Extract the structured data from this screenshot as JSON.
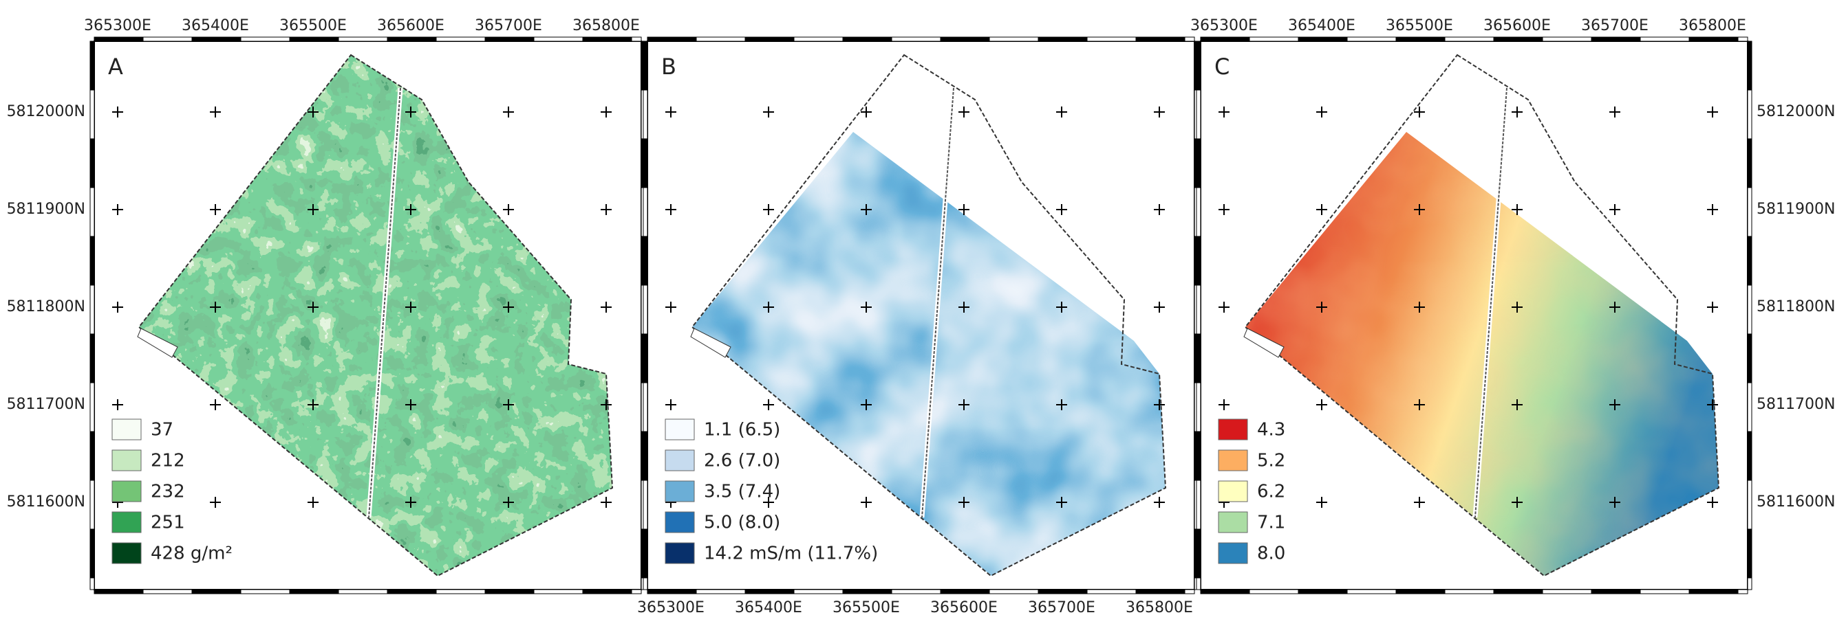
{
  "panels": [
    {
      "label": "A",
      "legend": [
        {
          "color": "#f7fcf5",
          "text": "37"
        },
        {
          "color": "#c7e9c0",
          "text": "212"
        },
        {
          "color": "#74c476",
          "text": "232"
        },
        {
          "color": "#31a354",
          "text": "251"
        },
        {
          "color": "#00441b",
          "text": "428 g/m²"
        }
      ]
    },
    {
      "label": "B",
      "legend": [
        {
          "color": "#f7fbff",
          "text": "1.1 (6.5)"
        },
        {
          "color": "#c6dbef",
          "text": "2.6 (7.0)"
        },
        {
          "color": "#6baed6",
          "text": "3.5 (7.4)"
        },
        {
          "color": "#2171b5",
          "text": "5.0 (8.0)"
        },
        {
          "color": "#08306b",
          "text": "14.2 mS/m (11.7%)"
        }
      ]
    },
    {
      "label": "C",
      "legend": [
        {
          "color": "#d7191c",
          "text": "4.3"
        },
        {
          "color": "#fdae61",
          "text": "5.2"
        },
        {
          "color": "#ffffbf",
          "text": "6.2"
        },
        {
          "color": "#abdda4",
          "text": "7.1"
        },
        {
          "color": "#2b83ba",
          "text": "8.0"
        }
      ]
    }
  ],
  "axes": {
    "x_top_a": [
      "365300E",
      "365400E",
      "365500E",
      "365600E",
      "365700E",
      "365800E"
    ],
    "x_bottom_b": [
      "365300E",
      "365400E",
      "365500E",
      "365600E",
      "365700E",
      "365800E"
    ],
    "x_top_c": [
      "365300E",
      "365400E",
      "365500E",
      "365600E",
      "365700E",
      "365800E"
    ],
    "y_left_a": [
      "5812000N",
      "5811900N",
      "5811800N",
      "5811700N",
      "5811600N"
    ],
    "y_right_c": [
      "5812000N",
      "5811900N",
      "5811800N",
      "5811700N",
      "5811600N"
    ]
  }
}
